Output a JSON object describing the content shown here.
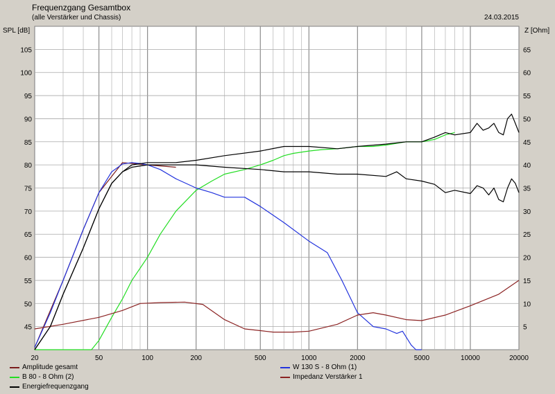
{
  "header": {
    "title": "Frequenzgang Gesamtbox",
    "subtitle": "(alle Verstärker und Chassis)",
    "date": "24.03.2015"
  },
  "chart_data": {
    "type": "line",
    "xscale": "log",
    "xlim": [
      20,
      20000
    ],
    "ylim_left": [
      40,
      110
    ],
    "ylim_right": [
      0,
      70
    ],
    "ylabel_left": "SPL [dB]",
    "ylabel_right": "Z [Ohm]",
    "x_ticks": [
      20,
      50,
      100,
      200,
      500,
      1000,
      2000,
      5000,
      10000,
      20000
    ],
    "x_tick_labels": [
      "20",
      "50",
      "100",
      "200",
      "500",
      "1000",
      "2000",
      "5000",
      "10000",
      "20000"
    ],
    "y_ticks_left": [
      45,
      50,
      55,
      60,
      65,
      70,
      75,
      80,
      85,
      90,
      95,
      100,
      105
    ],
    "y_ticks_right": [
      5,
      10,
      15,
      20,
      25,
      30,
      35,
      40,
      45,
      50,
      55,
      60,
      65
    ],
    "grid": true,
    "series": [
      {
        "name": "Amplitude gesamt",
        "color": "#7a1c1c",
        "axis": "left",
        "x": [
          20,
          30,
          40,
          50,
          70,
          100,
          150
        ],
        "y": [
          40.5,
          55,
          66,
          74,
          80.5,
          80,
          79.5
        ]
      },
      {
        "name": "B 80 - 8 Ohm (2)",
        "color": "#22dd22",
        "axis": "left",
        "x": [
          20,
          40,
          45,
          50,
          60,
          70,
          80,
          100,
          120,
          150,
          200,
          250,
          300,
          400,
          500,
          600,
          700,
          800,
          1000,
          1200,
          1500,
          2000,
          2500,
          3000,
          4000,
          5000,
          6000,
          7000,
          8000
        ],
        "y": [
          40,
          40,
          40,
          42,
          47,
          51,
          55,
          60,
          65,
          70,
          74.5,
          76.5,
          78,
          79,
          80,
          81,
          82,
          82.5,
          83,
          83.3,
          83.5,
          84,
          84,
          84.3,
          85,
          85,
          85.5,
          86.5,
          87
        ]
      },
      {
        "name": "W 130 S - 8 Ohm (1)",
        "color": "#2233dd",
        "axis": "left",
        "x": [
          20,
          25,
          30,
          40,
          50,
          60,
          70,
          80,
          90,
          100,
          120,
          150,
          200,
          250,
          300,
          400,
          500,
          700,
          1000,
          1300,
          1600,
          2000,
          2500,
          3000,
          3500,
          3800,
          4300,
          4600,
          5000
        ],
        "y": [
          40.5,
          48,
          55,
          66,
          74,
          78.5,
          80.2,
          80.5,
          80.3,
          80,
          79,
          77,
          75,
          74,
          73,
          73,
          71,
          67.5,
          63.5,
          61,
          55,
          48,
          45,
          44.5,
          43.5,
          44,
          41,
          40,
          40
        ]
      },
      {
        "name": "Impedanz Verstärker 1",
        "color": "#8b2222",
        "axis": "right",
        "x": [
          20,
          30,
          50,
          70,
          90,
          120,
          170,
          220,
          300,
          400,
          600,
          800,
          1000,
          1500,
          2000,
          2500,
          3000,
          4000,
          5000,
          7000,
          10000,
          15000,
          20000
        ],
        "y": [
          4.5,
          5.5,
          7,
          8.5,
          10,
          10.2,
          10.3,
          9.8,
          6.5,
          4.5,
          3.8,
          3.8,
          4,
          5.5,
          7.5,
          8,
          7.5,
          6.5,
          6.3,
          7.5,
          9.5,
          12,
          15
        ]
      },
      {
        "name": "Energiefrequenzgang",
        "color": "#000000",
        "axis": "left",
        "role": "upper",
        "x": [
          20,
          25,
          30,
          40,
          50,
          60,
          70,
          80,
          100,
          150,
          200,
          300,
          500,
          700,
          1000,
          1500,
          2000,
          3000,
          4000,
          5000,
          6000,
          7000,
          8000,
          10000,
          11000,
          12000,
          13000,
          14000,
          15000,
          16000,
          17000,
          18000,
          19000,
          20000
        ],
        "y": [
          40,
          45,
          52,
          62,
          70.5,
          76,
          78.5,
          80,
          80.5,
          80.5,
          81,
          82,
          83,
          84,
          84,
          83.5,
          84,
          84.5,
          85,
          85,
          86,
          87,
          86.5,
          87,
          89,
          87.5,
          88,
          89,
          87,
          86.5,
          90,
          91,
          89,
          87
        ]
      },
      {
        "name": "",
        "color": "#000000",
        "axis": "left",
        "role": "lower",
        "x": [
          20,
          25,
          30,
          40,
          50,
          60,
          70,
          80,
          100,
          150,
          200,
          300,
          500,
          700,
          1000,
          1500,
          2000,
          3000,
          3500,
          4000,
          5000,
          6000,
          7000,
          8000,
          10000,
          11000,
          12000,
          13000,
          14000,
          15000,
          16000,
          17000,
          18000,
          19000,
          20000
        ],
        "y": [
          40,
          45,
          52,
          62,
          70.5,
          76,
          78.5,
          79.5,
          80,
          80,
          80,
          79.5,
          79,
          78.5,
          78.5,
          78,
          78,
          77.5,
          78.5,
          77,
          76.5,
          75.8,
          74,
          74.5,
          73.8,
          75.5,
          75,
          73.5,
          75,
          72.5,
          72,
          75,
          77,
          76,
          74
        ]
      }
    ]
  }
}
